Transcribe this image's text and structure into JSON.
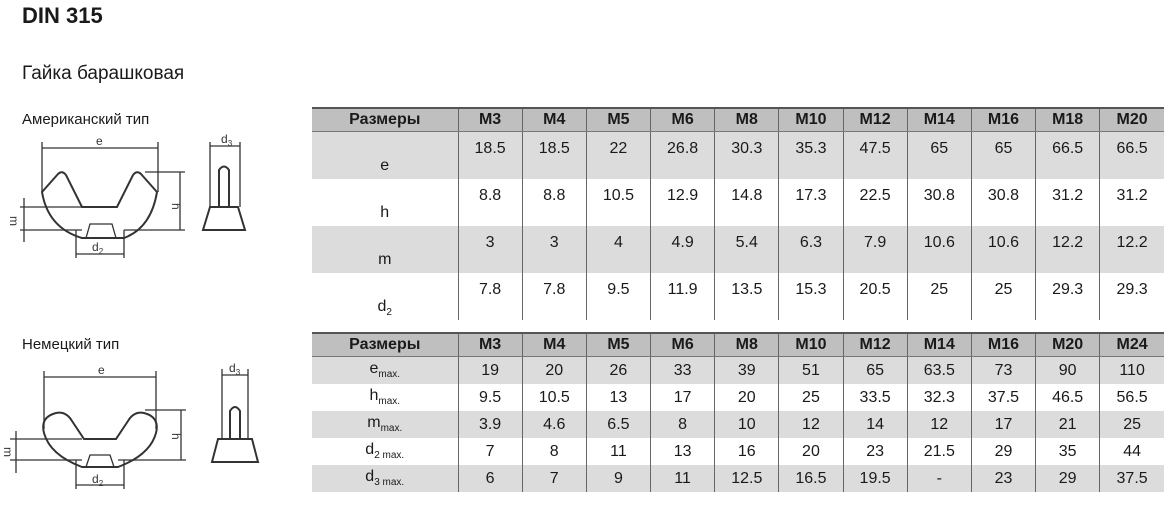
{
  "title": "DIN 315",
  "subtitle": "Гайка барашковая",
  "american": {
    "label": "Американский тип",
    "drawing_labels": {
      "e": "e",
      "h": "h",
      "m": "m",
      "d2": "d",
      "d2_sub": "2",
      "d3": "d",
      "d3_sub": "3"
    },
    "header": [
      "Размеры",
      "M3",
      "M4",
      "M5",
      "M6",
      "M8",
      "M10",
      "M12",
      "M14",
      "M16",
      "M18",
      "M20"
    ],
    "rows": [
      {
        "name": "e",
        "sub": "",
        "values": [
          "18.5",
          "18.5",
          "22",
          "26.8",
          "30.3",
          "35.3",
          "47.5",
          "65",
          "65",
          "66.5",
          "66.5"
        ]
      },
      {
        "name": "h",
        "sub": "",
        "values": [
          "8.8",
          "8.8",
          "10.5",
          "12.9",
          "14.8",
          "17.3",
          "22.5",
          "30.8",
          "30.8",
          "31.2",
          "31.2"
        ]
      },
      {
        "name": "m",
        "sub": "",
        "values": [
          "3",
          "3",
          "4",
          "4.9",
          "5.4",
          "6.3",
          "7.9",
          "10.6",
          "10.6",
          "12.2",
          "12.2"
        ]
      },
      {
        "name": "d",
        "sub": "2",
        "values": [
          "7.8",
          "7.8",
          "9.5",
          "11.9",
          "13.5",
          "15.3",
          "20.5",
          "25",
          "25",
          "29.3",
          "29.3"
        ]
      }
    ]
  },
  "german": {
    "label": "Немецкий тип",
    "drawing_labels": {
      "e": "e",
      "h": "h",
      "m": "m",
      "d2": "d",
      "d2_sub": "2",
      "d3": "d",
      "d3_sub": "3"
    },
    "header": [
      "Размеры",
      "M3",
      "M4",
      "M5",
      "M6",
      "M8",
      "M10",
      "M12",
      "M14",
      "M16",
      "M20",
      "M24"
    ],
    "rows": [
      {
        "name": "e",
        "sub": "max.",
        "values": [
          "19",
          "20",
          "26",
          "33",
          "39",
          "51",
          "65",
          "63.5",
          "73",
          "90",
          "110"
        ]
      },
      {
        "name": "h",
        "sub": "max.",
        "values": [
          "9.5",
          "10.5",
          "13",
          "17",
          "20",
          "25",
          "33.5",
          "32.3",
          "37.5",
          "46.5",
          "56.5"
        ]
      },
      {
        "name": "m",
        "sub": "max.",
        "values": [
          "3.9",
          "4.6",
          "6.5",
          "8",
          "10",
          "12",
          "14",
          "12",
          "17",
          "21",
          "25"
        ]
      },
      {
        "name": "d",
        "sub": "2 max.",
        "values": [
          "7",
          "8",
          "11",
          "13",
          "16",
          "20",
          "23",
          "21.5",
          "29",
          "35",
          "44"
        ]
      },
      {
        "name": "d",
        "sub": "3 max.",
        "values": [
          "6",
          "7",
          "9",
          "11",
          "12.5",
          "16.5",
          "19.5",
          "-",
          "23",
          "29",
          "37.5"
        ]
      }
    ]
  },
  "colors": {
    "header_bg": "#bfbfbf",
    "stripe_bg": "#dcdcdc"
  }
}
